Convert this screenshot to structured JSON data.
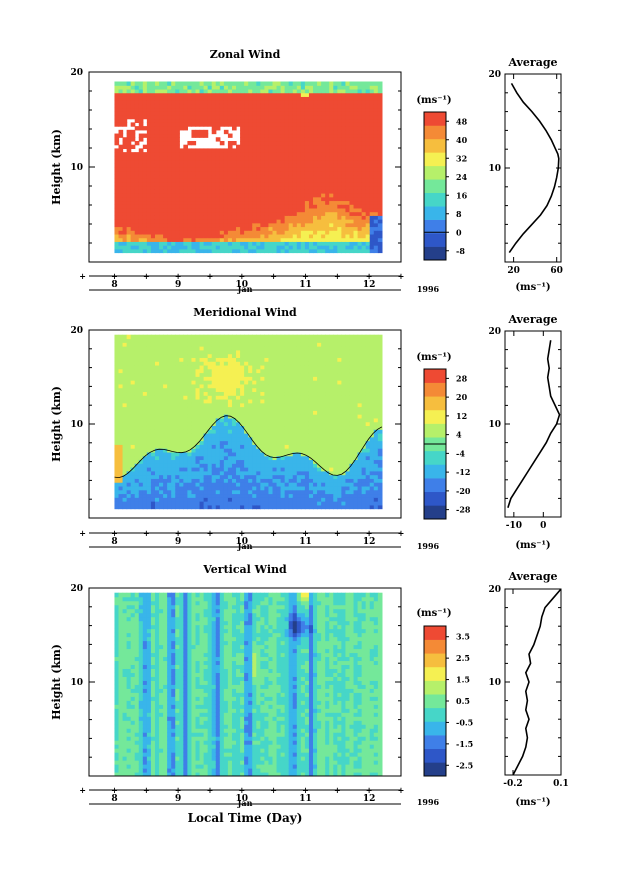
{
  "chart_data": [
    {
      "type": "heatmap",
      "title": "Zonal Wind",
      "ylabel": "Height (km)",
      "xlabel": "Jan",
      "year": "1996",
      "ylim": [
        0,
        20
      ],
      "yticks": [
        "10",
        "20"
      ],
      "xlim": [
        7.6,
        12.5
      ],
      "xticks": [
        "8",
        "9",
        "10",
        "11",
        "12"
      ],
      "data_xlim": [
        8.0,
        12.2
      ],
      "data_ylim": [
        1,
        19
      ],
      "colorbar": {
        "unit": "(ms⁻¹)",
        "labels": [
          "48",
          "40",
          "32",
          "24",
          "16",
          "8",
          "0",
          "-8"
        ],
        "min": -12,
        "max": 52,
        "zero_line": 0
      },
      "profile": {
        "title": "Average",
        "xlabel": "(ms⁻¹)",
        "xlim": [
          12,
          64
        ],
        "xticks": [
          "20",
          "60"
        ],
        "yticks": [
          "10",
          "20"
        ],
        "heights": [
          1,
          1.5,
          2,
          3,
          4,
          5,
          6,
          7,
          8,
          9,
          10,
          11,
          11.5,
          12,
          13,
          14,
          15,
          16,
          17,
          18,
          19
        ],
        "values": [
          16,
          19,
          22,
          29,
          37,
          45,
          51,
          55,
          58,
          60,
          61.5,
          62,
          61,
          59,
          55,
          50,
          44,
          37,
          29,
          23,
          18
        ]
      }
    },
    {
      "type": "heatmap",
      "title": "Meridional Wind",
      "ylabel": "Height (km)",
      "xlabel": "Jan",
      "year": "1996",
      "ylim": [
        0,
        20
      ],
      "yticks": [
        "10",
        "20"
      ],
      "xlim": [
        7.6,
        12.5
      ],
      "xticks": [
        "8",
        "9",
        "10",
        "11",
        "12"
      ],
      "data_xlim": [
        8.0,
        12.2
      ],
      "data_ylim": [
        1,
        19.5
      ],
      "colorbar": {
        "unit": "(ms⁻¹)",
        "labels": [
          "28",
          "20",
          "12",
          "4",
          "-4",
          "-12",
          "-20",
          "-28"
        ],
        "min": -32,
        "max": 32,
        "zero_line": 0
      },
      "profile": {
        "title": "Average",
        "xlabel": "(ms⁻¹)",
        "xlim": [
          -13,
          6
        ],
        "xticks": [
          "-10",
          "0"
        ],
        "yticks": [
          "10",
          "20"
        ],
        "heights": [
          1,
          2,
          3,
          4,
          5,
          6,
          7,
          8,
          9,
          10,
          11,
          12,
          13,
          14,
          15,
          16,
          17,
          18,
          19
        ],
        "values": [
          -12,
          -11,
          -9,
          -7,
          -5,
          -3,
          -1,
          1,
          2.5,
          4.5,
          5.5,
          4,
          2.5,
          2,
          1.5,
          2,
          1.5,
          2,
          2.5
        ]
      }
    },
    {
      "type": "heatmap",
      "title": "Vertical Wind",
      "ylabel": "Height (km)",
      "xlabel": "Local Time (Day)",
      "month": "Jan",
      "year": "1996",
      "ylim": [
        0,
        20
      ],
      "yticks": [
        "10",
        "20"
      ],
      "xlim": [
        7.6,
        12.5
      ],
      "xticks": [
        "8",
        "9",
        "10",
        "11",
        "12"
      ],
      "data_xlim": [
        8.0,
        12.2
      ],
      "data_ylim": [
        0,
        19.5
      ],
      "colorbar": {
        "unit": "(ms⁻¹)",
        "labels": [
          "3.5",
          "2.5",
          "1.5",
          "0.5",
          "-0.5",
          "-1.5",
          "-2.5"
        ],
        "min": -3.0,
        "max": 4.0
      },
      "profile": {
        "title": "Average",
        "xlabel": "(ms⁻¹)",
        "xlim": [
          -0.25,
          0.1
        ],
        "xticks": [
          "-0.2",
          "0.1"
        ],
        "yticks": [
          "10",
          "20"
        ],
        "heights": [
          0,
          1,
          2,
          3,
          4,
          5,
          6,
          7,
          8,
          9,
          10,
          11,
          12,
          13,
          14,
          15,
          16,
          17,
          18,
          19,
          20
        ],
        "values": [
          -0.2,
          -0.17,
          -0.14,
          -0.12,
          -0.11,
          -0.12,
          -0.1,
          -0.12,
          -0.11,
          -0.12,
          -0.1,
          -0.12,
          -0.09,
          -0.1,
          -0.07,
          -0.05,
          -0.03,
          -0.02,
          0.0,
          0.05,
          0.1
        ]
      }
    }
  ],
  "colors": {
    "scale": [
      "#243f8a",
      "#2e57c8",
      "#3f7fe8",
      "#39b5ea",
      "#46d6c8",
      "#74e89a",
      "#b6f06a",
      "#f5f052",
      "#f6be3e",
      "#f48a36",
      "#ee4a33"
    ]
  }
}
